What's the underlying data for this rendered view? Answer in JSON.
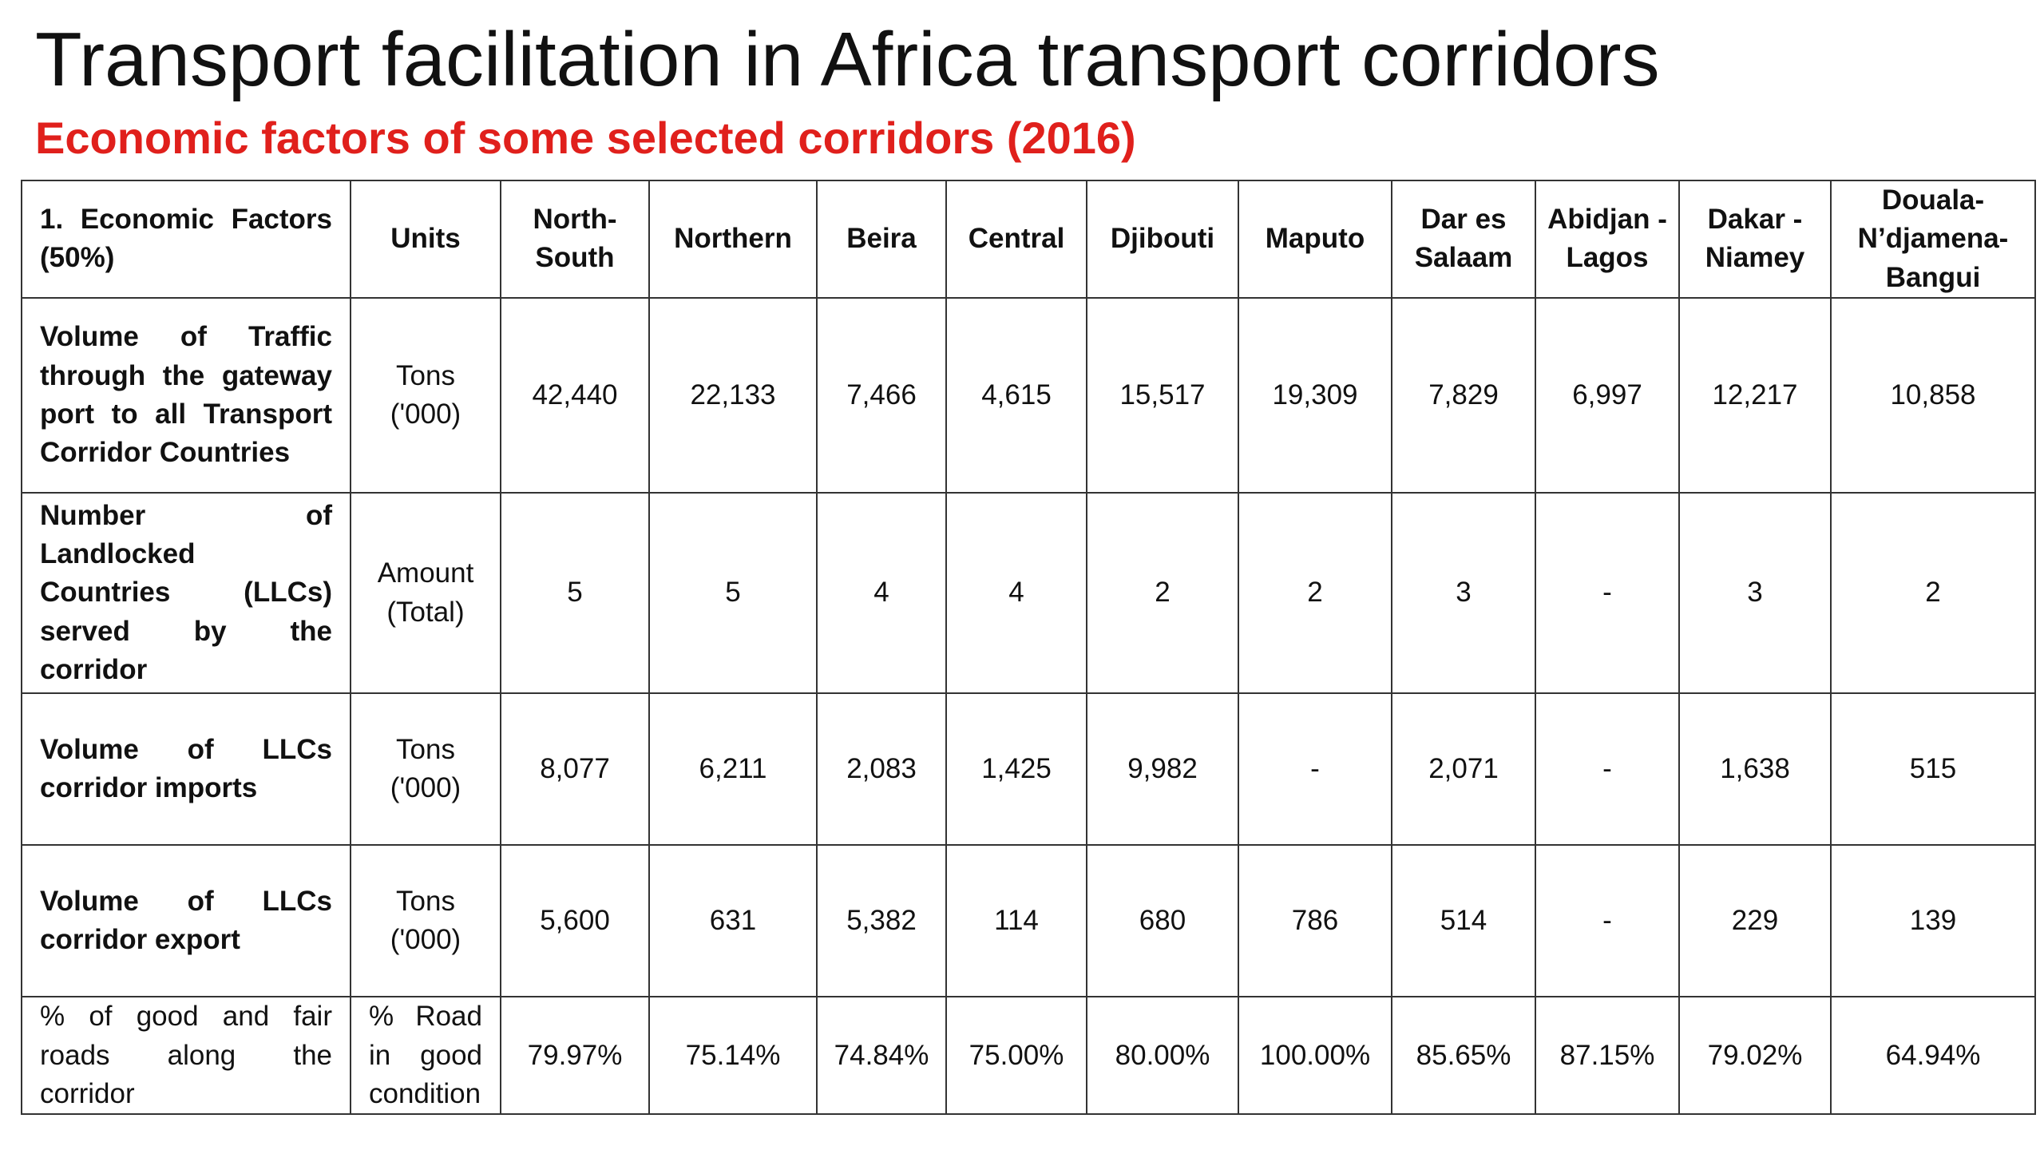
{
  "slide": {
    "title": "Transport facilitation in Africa transport corridors",
    "subtitle": "Economic factors of some selected corridors (2016)"
  },
  "colors": {
    "subtitle": "#e0201c",
    "text": "#111111",
    "border": "#333333"
  },
  "table": {
    "header": {
      "factor": "1. Economic Factors (50%)",
      "units": "Units",
      "corridors": [
        "North-South",
        "Northern",
        "Beira",
        "Central",
        "Djibouti",
        "Maputo",
        "Dar es Salaam",
        "Abidjan - Lagos",
        "Dakar - Niamey",
        "Douala-N’djamena-Bangui"
      ]
    },
    "rows": [
      {
        "factor": "Volume of Traffic through the gateway port to all Transport Corridor Countries",
        "unit": "Tons ('000)",
        "values": [
          "42,440",
          "22,133",
          "7,466",
          "4,615",
          "15,517",
          "19,309",
          "7,829",
          "6,997",
          "12,217",
          "10,858"
        ]
      },
      {
        "factor": "Number of Landlocked Countries (LLCs) served by the corridor",
        "unit": "Amount (Total)",
        "values": [
          "5",
          "5",
          "4",
          "4",
          "2",
          "2",
          "3",
          "-",
          "3",
          "2"
        ]
      },
      {
        "factor": "Volume of LLCs corridor imports",
        "unit": "Tons ('000)",
        "values": [
          "8,077",
          "6,211",
          "2,083",
          "1,425",
          "9,982",
          "-",
          "2,071",
          "-",
          "1,638",
          "515"
        ]
      },
      {
        "factor": "Volume of LLCs corridor export",
        "unit": "Tons ('000)",
        "values": [
          "5,600",
          "631",
          "5,382",
          "114",
          "680",
          "786",
          "514",
          "-",
          "229",
          "139"
        ]
      },
      {
        "factor": "% of good and fair roads along the corridor",
        "unit": "% Road in good condition",
        "values": [
          "79.97%",
          "75.14%",
          "74.84%",
          "75.00%",
          "80.00%",
          "100.00%",
          "85.65%",
          "87.15%",
          "79.02%",
          "64.94%"
        ]
      }
    ]
  }
}
